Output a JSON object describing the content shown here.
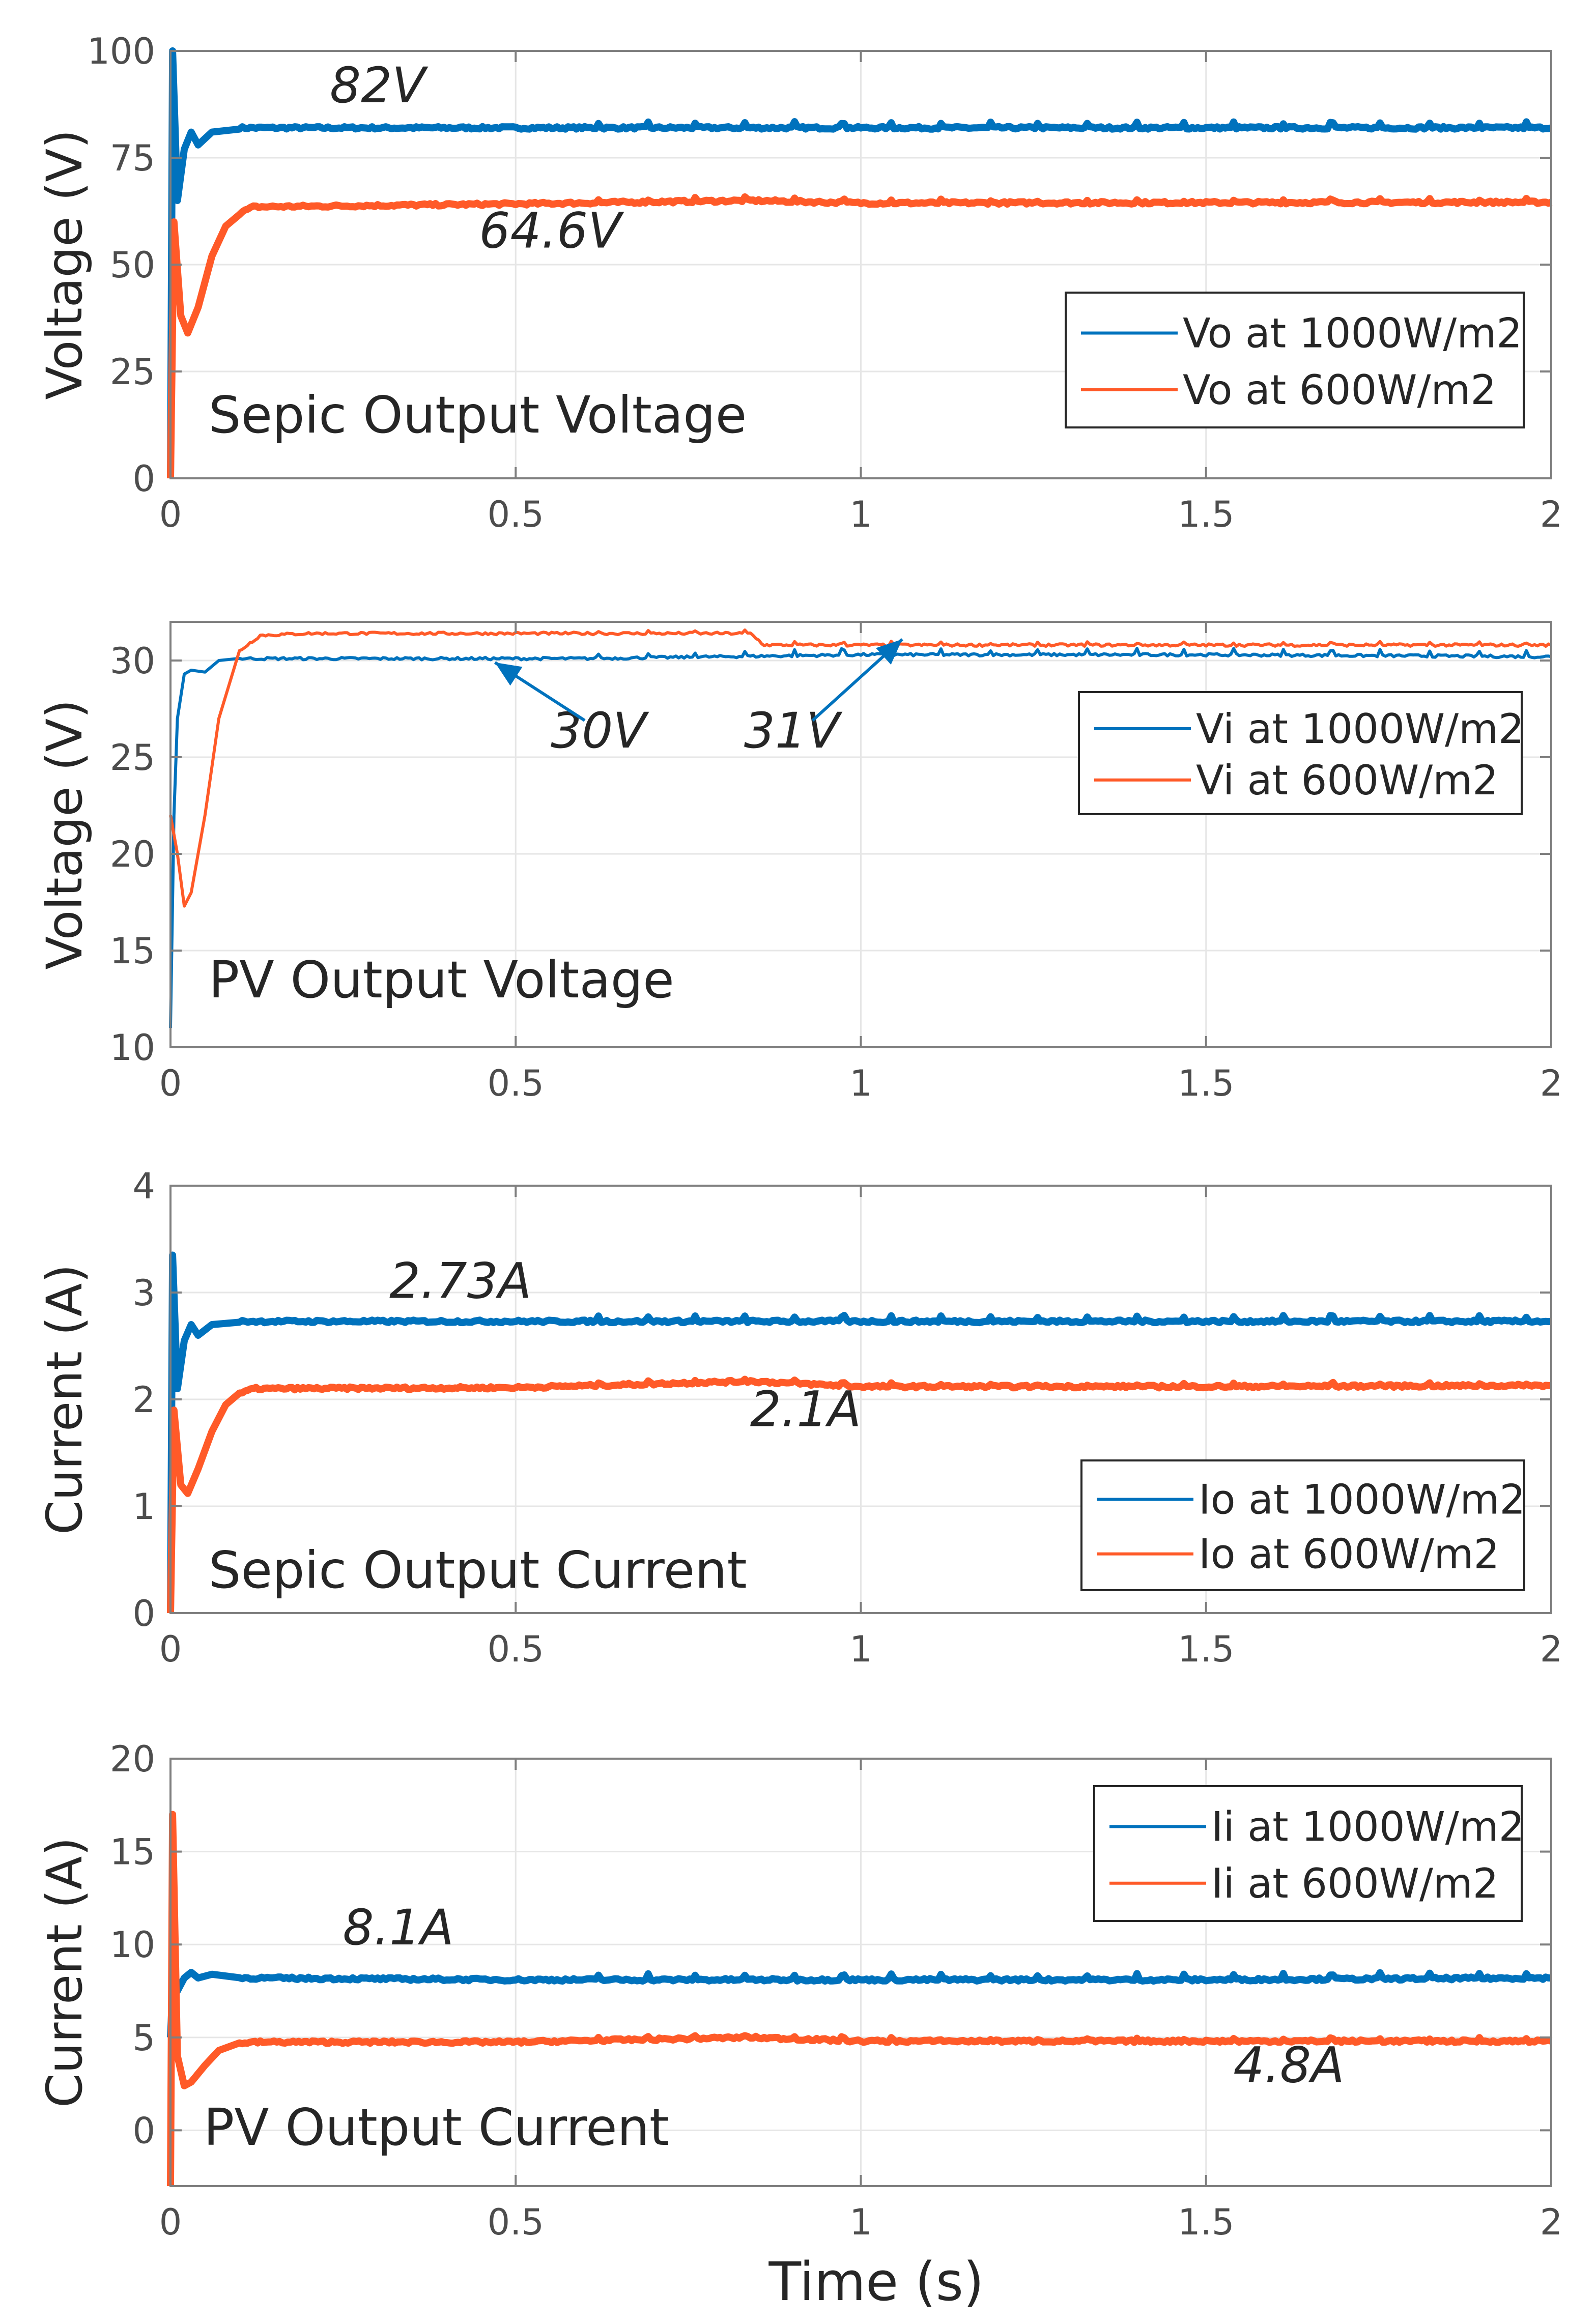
{
  "xlabel": "Time (s)",
  "colors": {
    "series_1000": "#0072BD",
    "series_600": "#FF5A28",
    "grid": "#e6e6e6",
    "axis": "#7f7f7f"
  },
  "chart_data": [
    {
      "type": "line",
      "title": "Sepic Output Voltage",
      "ylabel": "Voltage (V)",
      "xlim": [
        0,
        2
      ],
      "ylim": [
        0,
        100
      ],
      "xticks": [
        0,
        0.5,
        1,
        1.5,
        2
      ],
      "xtick_labels": [
        "0",
        "0.5",
        "1",
        "1.5",
        "2"
      ],
      "yticks": [
        0,
        25,
        50,
        75,
        100
      ],
      "ytick_labels": [
        "0",
        "25",
        "50",
        "75",
        "100"
      ],
      "grid": true,
      "legend_position": "middle-right",
      "series": [
        {
          "name": "Vo at 1000W/m2",
          "color": "#0072BD",
          "x": [
            0,
            0.003,
            0.01,
            0.02,
            0.03,
            0.04,
            0.06,
            0.1,
            0.5,
            1.0,
            1.5,
            2.0
          ],
          "y": [
            0,
            100,
            65,
            77,
            81,
            78,
            81,
            82,
            82,
            82,
            82,
            82
          ]
        },
        {
          "name": "Vo at 600W/m2",
          "color": "#FF5A28",
          "x": [
            0,
            0.005,
            0.015,
            0.025,
            0.04,
            0.06,
            0.08,
            0.1,
            0.12,
            0.5,
            0.84,
            1.0,
            1.5,
            2.0
          ],
          "y": [
            0,
            60,
            38,
            34,
            40,
            52,
            59,
            62,
            63.5,
            64.2,
            65,
            64.4,
            64.5,
            64.6
          ]
        }
      ],
      "annotations": [
        {
          "text": "82V",
          "x": 0.3,
          "y": 88
        },
        {
          "text": "64.6V",
          "x": 0.55,
          "y": 54
        }
      ]
    },
    {
      "type": "line",
      "title": "PV Output Voltage",
      "ylabel": "Voltage (V)",
      "xlim": [
        0,
        2
      ],
      "ylim": [
        10,
        32
      ],
      "xticks": [
        0,
        0.5,
        1,
        1.5,
        2
      ],
      "xtick_labels": [
        "0",
        "0.5",
        "1",
        "1.5",
        "2"
      ],
      "yticks": [
        10,
        15,
        20,
        25,
        30
      ],
      "ytick_labels": [
        "10",
        "15",
        "20",
        "25",
        "30"
      ],
      "grid": true,
      "legend_position": "top-right",
      "series": [
        {
          "name": "Vi at 1000W/m2",
          "color": "#0072BD",
          "x": [
            0,
            0.005,
            0.01,
            0.02,
            0.03,
            0.05,
            0.07,
            0.1,
            0.6,
            1.0,
            1.5,
            2.0
          ],
          "y": [
            11,
            22,
            27,
            29.3,
            29.5,
            29.4,
            30,
            30.1,
            30.1,
            30.3,
            30.3,
            30.2
          ]
        },
        {
          "name": "Vi at 600W/m2",
          "color": "#FF5A28",
          "x": [
            0,
            0.01,
            0.02,
            0.03,
            0.05,
            0.07,
            0.1,
            0.13,
            0.2,
            0.84,
            0.86,
            1.0,
            1.5,
            2.0
          ],
          "y": [
            22,
            20,
            17.3,
            18,
            22,
            27,
            30.5,
            31.3,
            31.4,
            31.4,
            30.8,
            30.8,
            30.8,
            30.8
          ]
        }
      ],
      "annotations": [
        {
          "text": "30V",
          "x": 0.62,
          "y": 25.5
        },
        {
          "text": "31V",
          "x": 0.9,
          "y": 25.5
        }
      ],
      "arrows": [
        {
          "from": [
            0.6,
            26.9
          ],
          "to": [
            0.47,
            29.9
          ]
        },
        {
          "from": [
            0.93,
            26.9
          ],
          "to": [
            1.06,
            31.1
          ]
        }
      ]
    },
    {
      "type": "line",
      "title": "Sepic Output Current",
      "ylabel": "Current (A)",
      "xlim": [
        0,
        2
      ],
      "ylim": [
        0,
        4
      ],
      "xticks": [
        0,
        0.5,
        1,
        1.5,
        2
      ],
      "xtick_labels": [
        "0",
        "0.5",
        "1",
        "1.5",
        "2"
      ],
      "yticks": [
        0,
        1,
        2,
        3,
        4
      ],
      "ytick_labels": [
        "0",
        "1",
        "2",
        "3",
        "4"
      ],
      "grid": true,
      "legend_position": "bottom-right",
      "series": [
        {
          "name": "Io at 1000W/m2",
          "color": "#0072BD",
          "x": [
            0,
            0.003,
            0.01,
            0.02,
            0.03,
            0.04,
            0.06,
            0.1,
            0.5,
            1.0,
            1.5,
            2.0
          ],
          "y": [
            0,
            3.35,
            2.1,
            2.55,
            2.7,
            2.6,
            2.7,
            2.73,
            2.73,
            2.73,
            2.73,
            2.73
          ]
        },
        {
          "name": "Io at 600W/m2",
          "color": "#FF5A28",
          "x": [
            0,
            0.005,
            0.015,
            0.025,
            0.04,
            0.06,
            0.08,
            0.1,
            0.12,
            0.5,
            0.84,
            1.0,
            1.5,
            2.0
          ],
          "y": [
            0,
            1.9,
            1.2,
            1.12,
            1.35,
            1.7,
            1.95,
            2.05,
            2.1,
            2.11,
            2.17,
            2.12,
            2.12,
            2.13
          ]
        }
      ],
      "annotations": [
        {
          "text": "2.73A",
          "x": 0.42,
          "y": 2.95
        },
        {
          "text": "2.1A",
          "x": 0.92,
          "y": 1.75
        }
      ]
    },
    {
      "type": "line",
      "title": "PV Output Current",
      "ylabel": "Current (A)",
      "xlim": [
        0,
        2
      ],
      "ylim": [
        -3,
        20
      ],
      "xticks": [
        0,
        0.5,
        1,
        1.5,
        2
      ],
      "xtick_labels": [
        "0",
        "0.5",
        "1",
        "1.5",
        "2"
      ],
      "yticks": [
        0,
        5,
        10,
        15,
        20
      ],
      "ytick_labels": [
        "0",
        "5",
        "10",
        "15",
        "20"
      ],
      "grid": true,
      "legend_position": "top-right",
      "series": [
        {
          "name": "Ii at 1000W/m2",
          "color": "#0072BD",
          "x": [
            0,
            0.005,
            0.01,
            0.02,
            0.03,
            0.04,
            0.06,
            0.1,
            0.5,
            1.0,
            1.5,
            2.0
          ],
          "y": [
            5,
            9,
            7.5,
            8.2,
            8.5,
            8.2,
            8.4,
            8.2,
            8.1,
            8.1,
            8.1,
            8.2
          ]
        },
        {
          "name": "Ii at 600W/m2",
          "color": "#FF5A28",
          "x": [
            0,
            0.003,
            0.01,
            0.02,
            0.03,
            0.05,
            0.07,
            0.1,
            0.13,
            0.5,
            0.84,
            1.0,
            1.5,
            2.0
          ],
          "y": [
            -3,
            17,
            4,
            2.4,
            2.6,
            3.5,
            4.3,
            4.7,
            4.75,
            4.75,
            5.0,
            4.8,
            4.8,
            4.8
          ]
        }
      ],
      "annotations": [
        {
          "text": "8.1A",
          "x": 0.33,
          "y": 10
        },
        {
          "text": "4.8A",
          "x": 1.62,
          "y": 2.6
        }
      ]
    }
  ]
}
